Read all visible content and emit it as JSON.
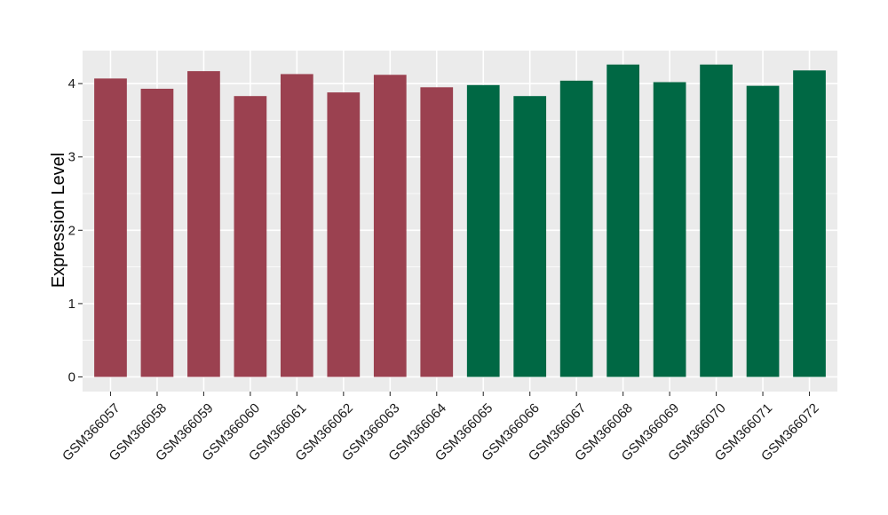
{
  "chart_data": {
    "type": "bar",
    "title": "",
    "xlabel": "",
    "ylabel": "Expression Level",
    "ylim": [
      -0.2,
      4.45
    ],
    "yticks": [
      0,
      1,
      2,
      3,
      4
    ],
    "grid": true,
    "legend": "none",
    "panel_background": "#ebebeb",
    "grid_color": "#ffffff",
    "groups": [
      {
        "color": "#9b4150",
        "count": 8
      },
      {
        "color": "#006844",
        "count": 8
      }
    ],
    "categories": [
      "GSM366057",
      "GSM366058",
      "GSM366059",
      "GSM366060",
      "GSM366061",
      "GSM366062",
      "GSM366063",
      "GSM366064",
      "GSM366065",
      "GSM366066",
      "GSM366067",
      "GSM366068",
      "GSM366069",
      "GSM366070",
      "GSM366071",
      "GSM366072"
    ],
    "values": [
      4.07,
      3.93,
      4.17,
      3.83,
      4.13,
      3.88,
      4.12,
      3.95,
      3.98,
      3.83,
      4.04,
      4.26,
      4.02,
      4.26,
      3.97,
      4.18
    ]
  }
}
